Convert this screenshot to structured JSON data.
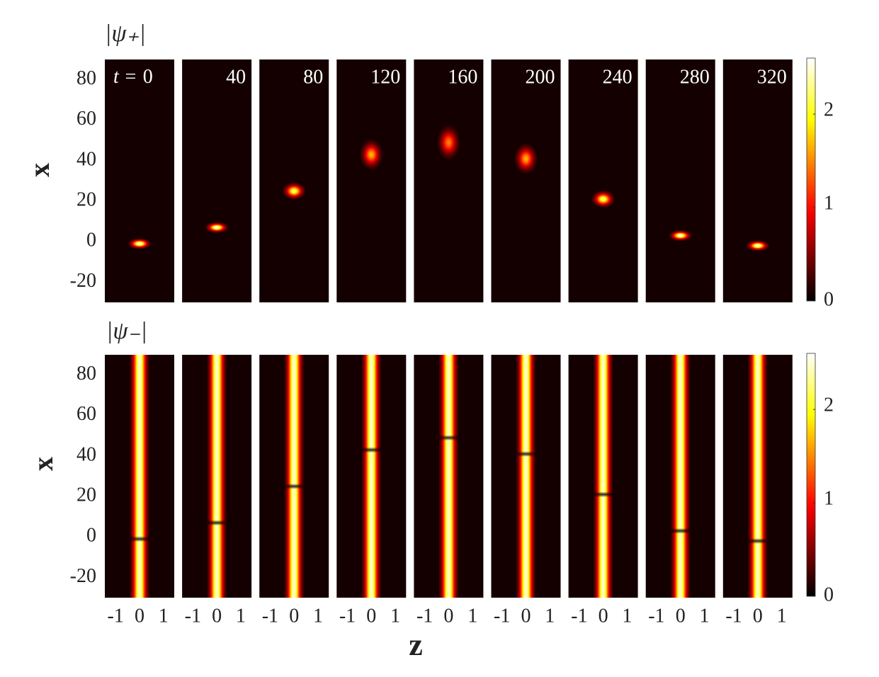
{
  "chart_data": {
    "type": "heatmap-panels",
    "colormap": "hot",
    "xlabel": "z",
    "ylabel": "x",
    "time_prefix": "t =",
    "times": [
      0,
      40,
      80,
      120,
      160,
      200,
      240,
      280,
      320
    ],
    "xlim": [
      -1.45,
      1.45
    ],
    "xticks": [
      -1,
      0,
      1
    ],
    "ylim": [
      -30,
      90
    ],
    "yticks": [
      -20,
      0,
      20,
      40,
      60,
      80
    ],
    "clim": [
      0,
      2.6
    ],
    "cticks": [
      0,
      1,
      2
    ],
    "rows": [
      {
        "label": "|ψ₊|",
        "peak_x": [
          -1,
          7,
          25,
          43,
          49,
          41,
          21,
          3,
          -2
        ],
        "peak_values": [
          2.5,
          2.5,
          2.2,
          1.6,
          1.4,
          1.6,
          2.2,
          2.5,
          2.5
        ]
      },
      {
        "label": "|ψ₋|",
        "notch_x": [
          -1,
          7,
          25,
          43,
          49,
          41,
          21,
          3,
          -2
        ],
        "stripe_peak": 2.4
      }
    ]
  }
}
